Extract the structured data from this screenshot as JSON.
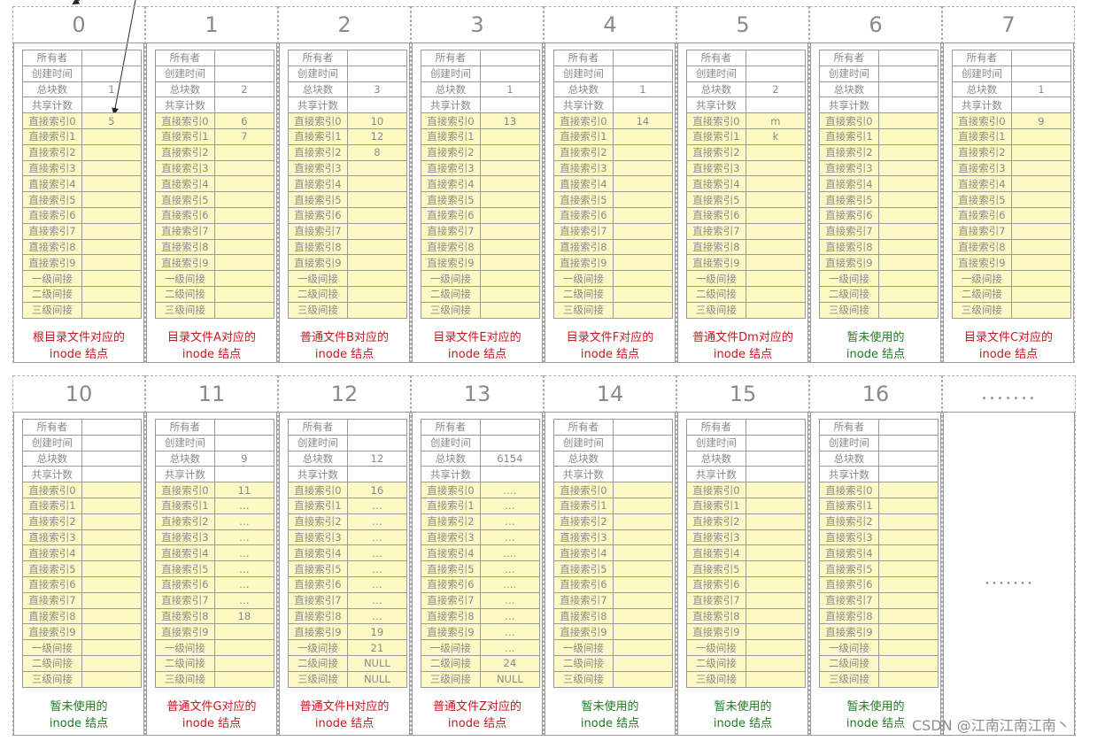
{
  "labels": {
    "owner": "所有者",
    "ctime": "创建时间",
    "blocks": "总块数",
    "shares": "共享计数",
    "d0": "直接索引0",
    "d1": "直接索引1",
    "d2": "直接索引2",
    "d3": "直接索引3",
    "d4": "直接索引4",
    "d5": "直接索引5",
    "d6": "直接索引6",
    "d7": "直接索引7",
    "d8": "直接索引8",
    "d9": "直接索引9",
    "l1": "一级间接",
    "l2": "二级间接",
    "l3": "三级间接"
  },
  "rows": [
    {
      "cells": [
        {
          "num": "0",
          "blocks": "1",
          "d": [
            "5",
            "",
            "",
            "",
            "",
            "",
            "",
            "",
            "",
            ""
          ],
          "ind": [
            "",
            "",
            ""
          ],
          "cap1": "根目录文件对应的",
          "cap2": "inode 结点",
          "capColor": "red"
        },
        {
          "num": "1",
          "blocks": "2",
          "d": [
            "6",
            "7",
            "",
            "",
            "",
            "",
            "",
            "",
            "",
            ""
          ],
          "ind": [
            "",
            "",
            ""
          ],
          "cap1": "目录文件A对应的",
          "cap2": "inode 结点",
          "capColor": "red"
        },
        {
          "num": "2",
          "blocks": "3",
          "d": [
            "10",
            "12",
            "8",
            "",
            "",
            "",
            "",
            "",
            "",
            ""
          ],
          "ind": [
            "",
            "",
            ""
          ],
          "cap1": "普通文件B对应的",
          "cap2": "inode 结点",
          "capColor": "red"
        },
        {
          "num": "3",
          "blocks": "1",
          "d": [
            "13",
            "",
            "",
            "",
            "",
            "",
            "",
            "",
            "",
            ""
          ],
          "ind": [
            "",
            "",
            ""
          ],
          "cap1": "目录文件E对应的",
          "cap2": "inode 结点",
          "capColor": "red"
        },
        {
          "num": "4",
          "blocks": "1",
          "d": [
            "14",
            "",
            "",
            "",
            "",
            "",
            "",
            "",
            "",
            ""
          ],
          "ind": [
            "",
            "",
            ""
          ],
          "cap1": "目录文件F对应的",
          "cap2": "inode 结点",
          "capColor": "red"
        },
        {
          "num": "5",
          "blocks": "2",
          "d": [
            "m",
            "k",
            "",
            "",
            "",
            "",
            "",
            "",
            "",
            ""
          ],
          "ind": [
            "",
            "",
            ""
          ],
          "cap1": "普通文件Dm对应的",
          "cap2": "inode 结点",
          "capColor": "red"
        },
        {
          "num": "6",
          "blocks": "",
          "d": [
            "",
            "",
            "",
            "",
            "",
            "",
            "",
            "",
            "",
            ""
          ],
          "ind": [
            "",
            "",
            ""
          ],
          "cap1": "暂未使用的",
          "cap2": "inode 结点",
          "capColor": "green"
        },
        {
          "num": "7",
          "blocks": "1",
          "d": [
            "9",
            "",
            "",
            "",
            "",
            "",
            "",
            "",
            "",
            ""
          ],
          "ind": [
            "",
            "",
            ""
          ],
          "cap1": "目录文件C对应的",
          "cap2": "inode 结点",
          "capColor": "red"
        }
      ]
    },
    {
      "cells": [
        {
          "num": "10",
          "blocks": "",
          "d": [
            "",
            "",
            "",
            "",
            "",
            "",
            "",
            "",
            "",
            ""
          ],
          "ind": [
            "",
            "",
            ""
          ],
          "cap1": "暂未使用的",
          "cap2": "inode 结点",
          "capColor": "green"
        },
        {
          "num": "11",
          "blocks": "9",
          "d": [
            "11",
            "…",
            "…",
            "…",
            "…",
            "…",
            "…",
            "…",
            "18",
            ""
          ],
          "ind": [
            "",
            "",
            ""
          ],
          "cap1": "普通文件G对应的",
          "cap2": "inode 结点",
          "capColor": "red"
        },
        {
          "num": "12",
          "blocks": "12",
          "d": [
            "16",
            "…",
            "…",
            "…",
            "…",
            "…",
            "…",
            "…",
            "…",
            "19"
          ],
          "ind": [
            "21",
            "NULL",
            "NULL"
          ],
          "cap1": "普通文件H对应的",
          "cap2": "inode 结点",
          "capColor": "red"
        },
        {
          "num": "13",
          "blocks": "6154",
          "d": [
            "….",
            "…",
            "…",
            "…",
            "….",
            "…",
            "….",
            "…",
            "…",
            "…"
          ],
          "ind": [
            "…",
            "24",
            "NULL"
          ],
          "cap1": "普通文件Z对应的",
          "cap2": "inode 结点",
          "capColor": "red"
        },
        {
          "num": "14",
          "blocks": "",
          "d": [
            "",
            "",
            "",
            "",
            "",
            "",
            "",
            "",
            "",
            ""
          ],
          "ind": [
            "",
            "",
            ""
          ],
          "cap1": "暂未使用的",
          "cap2": "inode 结点",
          "capColor": "green"
        },
        {
          "num": "15",
          "blocks": "",
          "d": [
            "",
            "",
            "",
            "",
            "",
            "",
            "",
            "",
            "",
            ""
          ],
          "ind": [
            "",
            "",
            ""
          ],
          "cap1": "暂未使用的",
          "cap2": "inode 结点",
          "capColor": "green"
        },
        {
          "num": "16",
          "blocks": "",
          "d": [
            "",
            "",
            "",
            "",
            "",
            "",
            "",
            "",
            "",
            ""
          ],
          "ind": [
            "",
            "",
            ""
          ],
          "cap1": "暂未使用的",
          "cap2": "inode 结点",
          "capColor": "green"
        }
      ],
      "ellipsisHeader": ".......",
      "ellipsisBody": "......."
    }
  ],
  "watermark": "CSDN @江南江南江南丶",
  "colors": {
    "red": "#c8161d",
    "green": "#1f7a1f",
    "yellow": "#fdf9c4",
    "border": "#9a9a9a"
  }
}
